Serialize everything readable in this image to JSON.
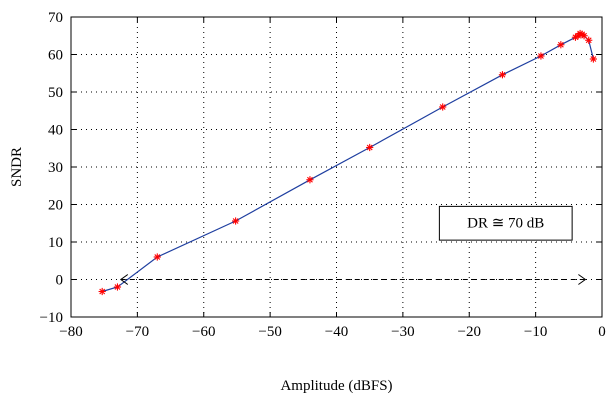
{
  "chart_data": {
    "type": "line",
    "title": "",
    "xlabel": "Amplitude (dBFS)",
    "ylabel": "SNDR",
    "xlim": [
      -80,
      0
    ],
    "ylim": [
      -10,
      70
    ],
    "xticks": [
      -80,
      -70,
      -60,
      -50,
      -40,
      -30,
      -20,
      -10,
      0
    ],
    "yticks": [
      -10,
      0,
      10,
      20,
      30,
      40,
      50,
      60,
      70
    ],
    "xtick_labels": [
      "−80",
      "−70",
      "−60",
      "−50",
      "−40",
      "−30",
      "−20",
      "−10",
      "0"
    ],
    "ytick_labels": [
      "−10",
      "0",
      "10",
      "20",
      "30",
      "40",
      "50",
      "60",
      "70"
    ],
    "grid": true,
    "series": [
      {
        "line_color": "#1f3fa0",
        "marker_color": "#ff0000",
        "marker": "*",
        "x": [
          -75.3,
          -73.0,
          -67.0,
          -55.2,
          -44.0,
          -35.0,
          -24.0,
          -15.0,
          -9.2,
          -6.2,
          -4.0,
          -3.6,
          -3.3,
          -3.0,
          -2.7,
          -2.0,
          -1.3
        ],
        "y": [
          -3.2,
          -2.0,
          6.0,
          15.6,
          26.6,
          35.2,
          46.0,
          54.6,
          59.6,
          62.6,
          64.6,
          65.0,
          65.6,
          65.4,
          65.0,
          63.8,
          58.8
        ]
      }
    ],
    "annotations": [
      {
        "text": "DR ≅ 70 dB",
        "box_x_range": [
          -24.5,
          -4.5
        ],
        "box_y_range": [
          10.5,
          19.5
        ]
      },
      {
        "type": "double-arrow",
        "text": "",
        "x_range": [
          -72.5,
          -2.5
        ],
        "y": 0
      }
    ]
  }
}
